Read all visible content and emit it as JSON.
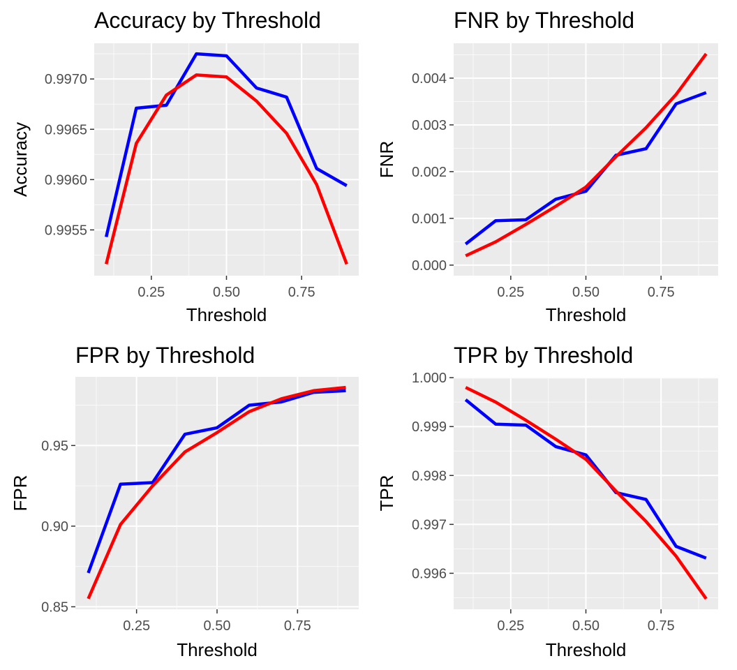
{
  "colors": {
    "panel_bg": "#EBEBEB",
    "grid_major": "#FFFFFF",
    "tick": "#333333",
    "tick_label": "#4D4D4D",
    "text": "#000000",
    "series_a": "#0000FF",
    "series_b": "#FF0000"
  },
  "chart_data": [
    {
      "type": "line",
      "title": "Accuracy by Threshold",
      "xlabel": "Threshold",
      "ylabel": "Accuracy",
      "xlim": [
        0.1,
        0.9
      ],
      "ylim": [
        0.99515,
        0.99725
      ],
      "xticks": [
        0.25,
        0.5,
        0.75
      ],
      "xtick_labels": [
        "0.25",
        "0.50",
        "0.75"
      ],
      "yticks": [
        0.9955,
        0.996,
        0.9965,
        0.997
      ],
      "ytick_labels": [
        "0.9955",
        "0.9960",
        "0.9965",
        "0.9970"
      ],
      "grid": true,
      "x": [
        0.1,
        0.2,
        0.3,
        0.4,
        0.5,
        0.6,
        0.7,
        0.8,
        0.9
      ],
      "series": [
        {
          "color": "#0000FF",
          "values": [
            0.99543,
            0.99671,
            0.99674,
            0.99725,
            0.99723,
            0.99691,
            0.99682,
            0.99611,
            0.99594
          ]
        },
        {
          "color": "#FF0000",
          "values": [
            0.99516,
            0.99636,
            0.99684,
            0.99704,
            0.99702,
            0.99678,
            0.99646,
            0.99595,
            0.99516
          ]
        }
      ]
    },
    {
      "type": "line",
      "title": "FNR by Threshold",
      "xlabel": "Threshold",
      "ylabel": "FNR",
      "xlim": [
        0.1,
        0.9
      ],
      "ylim": [
        0.0,
        0.00452
      ],
      "xticks": [
        0.25,
        0.5,
        0.75
      ],
      "xtick_labels": [
        "0.25",
        "0.50",
        "0.75"
      ],
      "yticks": [
        0.0,
        0.001,
        0.002,
        0.003,
        0.004
      ],
      "ytick_labels": [
        "0.000",
        "0.001",
        "0.002",
        "0.003",
        "0.004"
      ],
      "grid": true,
      "x": [
        0.1,
        0.2,
        0.3,
        0.4,
        0.5,
        0.6,
        0.7,
        0.8,
        0.9
      ],
      "series": [
        {
          "color": "#0000FF",
          "values": [
            0.00045,
            0.00095,
            0.00097,
            0.00141,
            0.00158,
            0.00235,
            0.00249,
            0.00345,
            0.00369
          ]
        },
        {
          "color": "#FF0000",
          "values": [
            0.0002,
            0.0005,
            0.00087,
            0.00126,
            0.00167,
            0.00232,
            0.00294,
            0.00365,
            0.00452
          ]
        }
      ]
    },
    {
      "type": "line",
      "title": "FPR by Threshold",
      "xlabel": "Threshold",
      "ylabel": "FPR",
      "xlim": [
        0.1,
        0.9
      ],
      "ylim": [
        0.855,
        0.986
      ],
      "xticks": [
        0.25,
        0.5,
        0.75
      ],
      "xtick_labels": [
        "0.25",
        "0.50",
        "0.75"
      ],
      "yticks": [
        0.85,
        0.9,
        0.95
      ],
      "ytick_labels": [
        "0.85",
        "0.90",
        "0.95"
      ],
      "grid": true,
      "x": [
        0.1,
        0.2,
        0.3,
        0.4,
        0.5,
        0.6,
        0.7,
        0.8,
        0.9
      ],
      "series": [
        {
          "color": "#0000FF",
          "values": [
            0.871,
            0.926,
            0.927,
            0.957,
            0.961,
            0.975,
            0.977,
            0.983,
            0.984
          ]
        },
        {
          "color": "#FF0000",
          "values": [
            0.855,
            0.901,
            0.925,
            0.946,
            0.958,
            0.971,
            0.979,
            0.984,
            0.986
          ]
        }
      ]
    },
    {
      "type": "line",
      "title": "TPR by Threshold",
      "xlabel": "Threshold",
      "ylabel": "TPR",
      "xlim": [
        0.1,
        0.9
      ],
      "ylim": [
        0.99548,
        0.9998
      ],
      "xticks": [
        0.25,
        0.5,
        0.75
      ],
      "xtick_labels": [
        "0.25",
        "0.50",
        "0.75"
      ],
      "yticks": [
        0.996,
        0.997,
        0.998,
        0.999,
        1.0
      ],
      "ytick_labels": [
        "0.996",
        "0.997",
        "0.998",
        "0.999",
        "1.000"
      ],
      "grid": true,
      "x": [
        0.1,
        0.2,
        0.3,
        0.4,
        0.5,
        0.6,
        0.7,
        0.8,
        0.9
      ],
      "series": [
        {
          "color": "#0000FF",
          "values": [
            0.99955,
            0.99905,
            0.99903,
            0.99859,
            0.99842,
            0.99765,
            0.99751,
            0.99655,
            0.99631
          ]
        },
        {
          "color": "#FF0000",
          "values": [
            0.9998,
            0.9995,
            0.99913,
            0.99874,
            0.99833,
            0.99768,
            0.99706,
            0.99635,
            0.99548
          ]
        }
      ]
    }
  ]
}
